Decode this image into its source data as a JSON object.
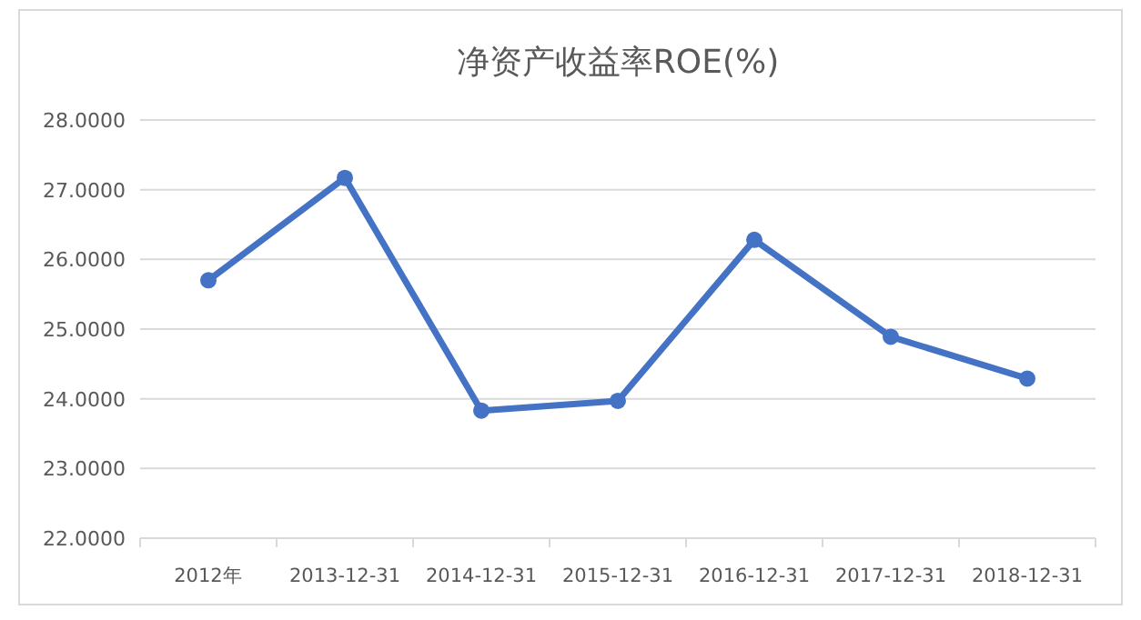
{
  "chart_data": {
    "type": "line",
    "title": "净资产收益率ROE(%)",
    "categories": [
      "2012年",
      "2013-12-31",
      "2014-12-31",
      "2015-12-31",
      "2016-12-31",
      "2017-12-31",
      "2018-12-31"
    ],
    "series": [
      {
        "color": "#4472c4",
        "values": [
          25.7,
          27.17,
          23.83,
          23.97,
          26.28,
          24.89,
          24.29
        ]
      }
    ],
    "ylim": [
      22,
      28
    ],
    "yticks": [
      {
        "value": 22,
        "label": "22.0000"
      },
      {
        "value": 23,
        "label": "23.0000"
      },
      {
        "value": 24,
        "label": "24.0000"
      },
      {
        "value": 25,
        "label": "25.0000"
      },
      {
        "value": 26,
        "label": "26.0000"
      },
      {
        "value": 27,
        "label": "27.0000"
      },
      {
        "value": 28,
        "label": "28.0000"
      }
    ],
    "grid": "y",
    "marker": "circle",
    "line_style": "solid"
  }
}
